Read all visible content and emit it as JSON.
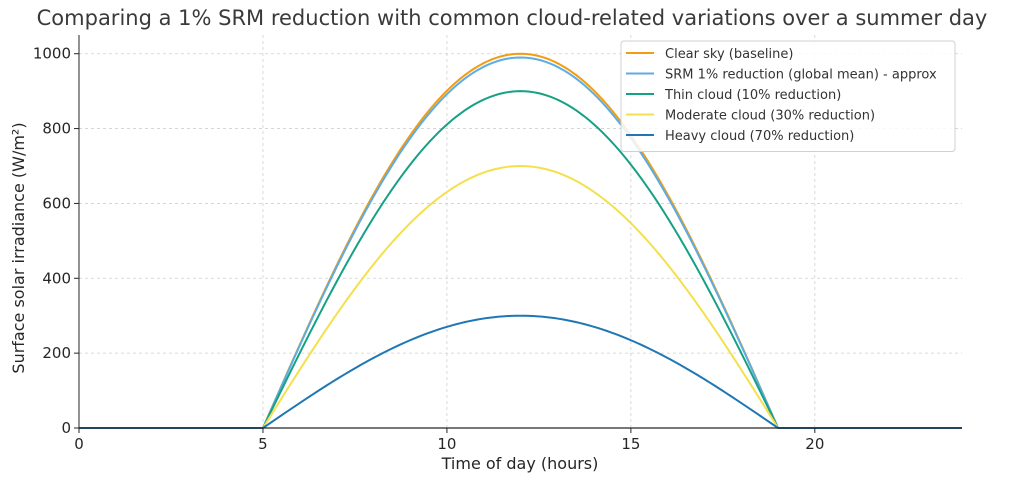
{
  "chart_data": {
    "type": "line",
    "title": "Comparing a 1% SRM reduction with common cloud-related variations over a summer day",
    "xlabel": "Time of day (hours)",
    "ylabel": "Surface solar irradiance (W/m²)",
    "xlim": [
      0,
      24
    ],
    "ylim": [
      0,
      1050
    ],
    "xticks": [
      0,
      5,
      10,
      15,
      20
    ],
    "yticks": [
      0,
      200,
      400,
      600,
      800,
      1000
    ],
    "grid": true,
    "legend_position": "top-right",
    "x": [
      0,
      1,
      2,
      3,
      4,
      5,
      6,
      7,
      8,
      9,
      10,
      11,
      12,
      13,
      14,
      15,
      16,
      17,
      18,
      19,
      20,
      21,
      22,
      23,
      24
    ],
    "series": [
      {
        "name": "Clear sky (baseline)",
        "color": "#f39c12",
        "values": [
          0,
          0,
          0,
          0,
          0,
          0,
          223,
          434,
          624,
          782,
          901,
          975,
          1000,
          975,
          901,
          782,
          624,
          434,
          223,
          0,
          0,
          0,
          0,
          0,
          0
        ]
      },
      {
        "name": "SRM 1% reduction (global mean) - approx",
        "color": "#5dade2",
        "values": [
          0,
          0,
          0,
          0,
          0,
          0,
          220,
          430,
          617,
          774,
          892,
          965,
          990,
          965,
          892,
          774,
          617,
          430,
          220,
          0,
          0,
          0,
          0,
          0,
          0
        ]
      },
      {
        "name": "Thin cloud (10% reduction)",
        "color": "#16a085",
        "values": [
          0,
          0,
          0,
          0,
          0,
          0,
          200,
          391,
          561,
          704,
          811,
          877,
          900,
          877,
          811,
          704,
          561,
          391,
          200,
          0,
          0,
          0,
          0,
          0,
          0
        ]
      },
      {
        "name": "Moderate cloud (30% reduction)",
        "color": "#f4e04d",
        "values": [
          0,
          0,
          0,
          0,
          0,
          0,
          156,
          304,
          437,
          547,
          631,
          682,
          700,
          682,
          631,
          547,
          437,
          304,
          156,
          0,
          0,
          0,
          0,
          0,
          0
        ]
      },
      {
        "name": "Heavy cloud (70% reduction)",
        "color": "#1f77b4",
        "values": [
          0,
          0,
          0,
          0,
          0,
          0,
          67,
          130,
          187,
          235,
          270,
          292,
          300,
          292,
          270,
          235,
          187,
          130,
          67,
          0,
          0,
          0,
          0,
          0,
          0
        ]
      }
    ]
  }
}
